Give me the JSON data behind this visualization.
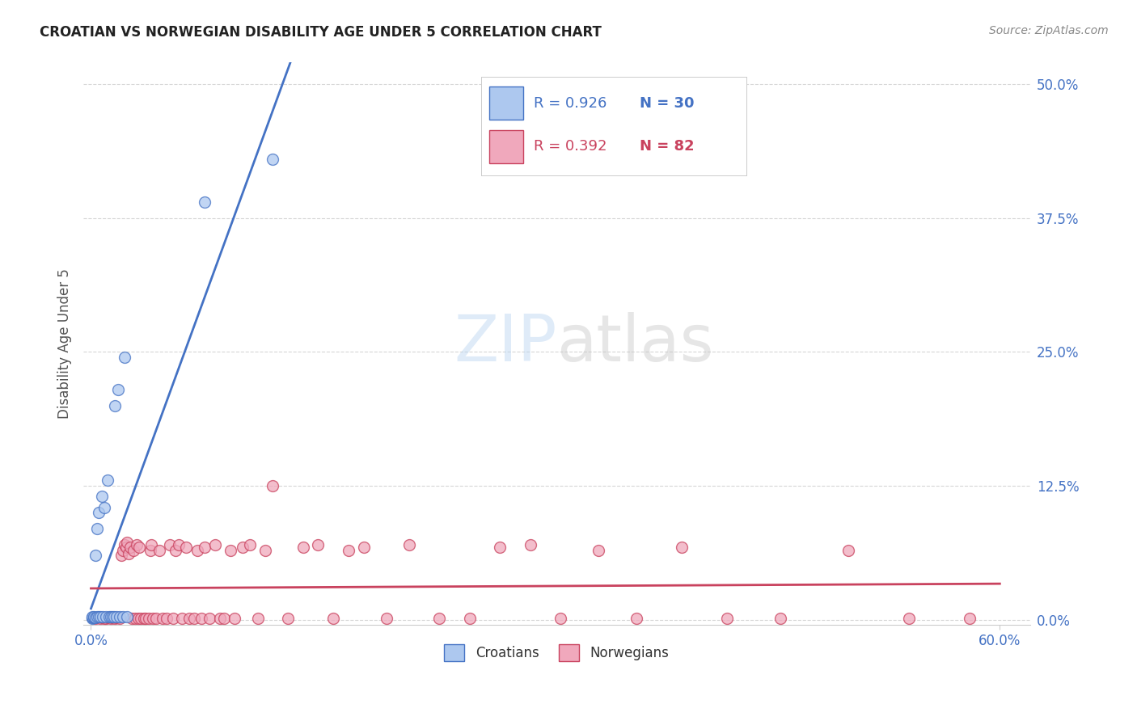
{
  "title": "CROATIAN VS NORWEGIAN DISABILITY AGE UNDER 5 CORRELATION CHART",
  "source": "Source: ZipAtlas.com",
  "ylabel": "Disability Age Under 5",
  "ytick_labels": [
    "0.0%",
    "12.5%",
    "25.0%",
    "37.5%",
    "50.0%"
  ],
  "ytick_values": [
    0.0,
    0.125,
    0.25,
    0.375,
    0.5
  ],
  "xtick_labels": [
    "0.0%",
    "60.0%"
  ],
  "xtick_values": [
    0.0,
    0.6
  ],
  "xlim": [
    -0.005,
    0.62
  ],
  "ylim": [
    -0.005,
    0.52
  ],
  "background_color": "#ffffff",
  "grid_color": "#cccccc",
  "croatian_color": "#adc8ef",
  "norwegian_color": "#f0a8bc",
  "croatian_line_color": "#4472c4",
  "norwegian_line_color": "#c9425e",
  "croatian_R": 0.926,
  "croatian_N": 30,
  "norwegian_R": 0.392,
  "norwegian_N": 82,
  "legend_label_croatian": "Croatians",
  "legend_label_norwegian": "Norwegians",
  "watermark_zip": "ZIP",
  "watermark_atlas": "atlas",
  "croatian_scatter_x": [
    0.001,
    0.001,
    0.001,
    0.002,
    0.002,
    0.003,
    0.003,
    0.004,
    0.004,
    0.005,
    0.005,
    0.006,
    0.007,
    0.008,
    0.009,
    0.01,
    0.011,
    0.012,
    0.013,
    0.014,
    0.015,
    0.016,
    0.017,
    0.018,
    0.019,
    0.021,
    0.022,
    0.024,
    0.075,
    0.12
  ],
  "croatian_scatter_y": [
    0.001,
    0.002,
    0.003,
    0.002,
    0.003,
    0.002,
    0.06,
    0.003,
    0.085,
    0.003,
    0.1,
    0.003,
    0.115,
    0.003,
    0.105,
    0.003,
    0.13,
    0.003,
    0.003,
    0.003,
    0.003,
    0.2,
    0.003,
    0.215,
    0.003,
    0.003,
    0.245,
    0.003,
    0.39,
    0.43
  ],
  "norwegian_scatter_x": [
    0.003,
    0.005,
    0.006,
    0.008,
    0.009,
    0.01,
    0.011,
    0.012,
    0.013,
    0.014,
    0.015,
    0.016,
    0.017,
    0.018,
    0.019,
    0.02,
    0.021,
    0.022,
    0.023,
    0.024,
    0.025,
    0.026,
    0.027,
    0.028,
    0.029,
    0.03,
    0.031,
    0.032,
    0.033,
    0.035,
    0.036,
    0.038,
    0.039,
    0.04,
    0.041,
    0.043,
    0.045,
    0.047,
    0.05,
    0.052,
    0.054,
    0.056,
    0.058,
    0.06,
    0.063,
    0.065,
    0.068,
    0.07,
    0.073,
    0.075,
    0.078,
    0.082,
    0.085,
    0.088,
    0.092,
    0.095,
    0.1,
    0.105,
    0.11,
    0.115,
    0.12,
    0.13,
    0.14,
    0.15,
    0.16,
    0.17,
    0.18,
    0.195,
    0.21,
    0.23,
    0.25,
    0.27,
    0.29,
    0.31,
    0.335,
    0.36,
    0.39,
    0.42,
    0.455,
    0.5,
    0.54,
    0.58
  ],
  "norwegian_scatter_y": [
    0.001,
    0.002,
    0.001,
    0.002,
    0.001,
    0.001,
    0.002,
    0.002,
    0.001,
    0.002,
    0.002,
    0.001,
    0.002,
    0.002,
    0.001,
    0.06,
    0.065,
    0.07,
    0.068,
    0.072,
    0.062,
    0.068,
    0.001,
    0.065,
    0.001,
    0.07,
    0.001,
    0.068,
    0.001,
    0.001,
    0.001,
    0.001,
    0.065,
    0.07,
    0.001,
    0.001,
    0.065,
    0.001,
    0.001,
    0.07,
    0.001,
    0.065,
    0.07,
    0.001,
    0.068,
    0.001,
    0.001,
    0.065,
    0.001,
    0.068,
    0.001,
    0.07,
    0.001,
    0.001,
    0.065,
    0.001,
    0.068,
    0.07,
    0.001,
    0.065,
    0.125,
    0.001,
    0.068,
    0.07,
    0.001,
    0.065,
    0.068,
    0.001,
    0.07,
    0.001,
    0.001,
    0.068,
    0.07,
    0.001,
    0.065,
    0.001,
    0.068,
    0.001,
    0.001,
    0.065,
    0.001,
    0.001
  ],
  "croatian_line_x": [
    0.0,
    0.165
  ],
  "norwegian_line_x": [
    0.0,
    0.6
  ],
  "norwegian_line_slope": 0.02,
  "norwegian_line_intercept": 0.01
}
